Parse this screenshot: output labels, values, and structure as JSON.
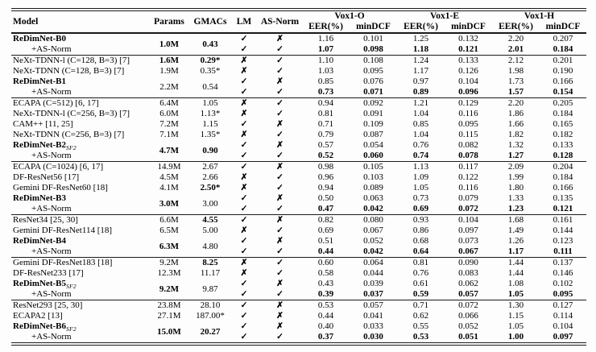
{
  "table": {
    "headers": {
      "model": "Model",
      "params": "Params",
      "gmacs": "GMACs",
      "lm": "LM",
      "asnorm": "AS-Norm",
      "groups": [
        "Vox1-O",
        "Vox1-E",
        "Vox1-H"
      ],
      "sub": {
        "eer": "EER(%)",
        "mindcf": "minDCF"
      }
    },
    "symbols": {
      "check": "✓",
      "cross": "✗"
    },
    "groups": [
      {
        "rows": [
          {
            "model": "ReDimNet-B0",
            "sub": "",
            "bold": true,
            "indent": false,
            "params": {
              "text": "1.0M",
              "bold": true,
              "span": 2
            },
            "gmacs": {
              "text": "0.43",
              "bold": true,
              "span": 2
            },
            "lm": "check",
            "asnorm": "cross",
            "vals": [
              "1.16",
              "0.101",
              "1.25",
              "0.132",
              "2.20",
              "0.207"
            ],
            "vals_bold": false
          },
          {
            "model": "+AS-Norm",
            "sub": "",
            "bold": false,
            "indent": true,
            "params": null,
            "gmacs": null,
            "lm": "check",
            "asnorm": "check",
            "vals": [
              "1.07",
              "0.098",
              "1.18",
              "0.121",
              "2.01",
              "0.184"
            ],
            "vals_bold": true
          }
        ]
      },
      {
        "rows": [
          {
            "model": "NeXt-TDNN-l (C=128, B=3) [7]",
            "sub": "",
            "bold": false,
            "indent": false,
            "params": {
              "text": "1.6M",
              "bold": true,
              "span": 1
            },
            "gmacs": {
              "text": "0.29*",
              "bold": true,
              "span": 1
            },
            "lm": "cross",
            "asnorm": "check",
            "vals": [
              "1.10",
              "0.108",
              "1.24",
              "0.133",
              "2.12",
              "0.201"
            ],
            "vals_bold": false
          },
          {
            "model": "NeXt-TDNN (C=128, B=3) [7]",
            "sub": "",
            "bold": false,
            "indent": false,
            "params": {
              "text": "1.9M",
              "bold": false,
              "span": 1
            },
            "gmacs": {
              "text": "0.35*",
              "bold": false,
              "span": 1
            },
            "lm": "cross",
            "asnorm": "check",
            "vals": [
              "1.03",
              "0.095",
              "1.17",
              "0.126",
              "1.98",
              "0.190"
            ],
            "vals_bold": false
          },
          {
            "model": "ReDimNet-B1",
            "sub": "",
            "bold": true,
            "indent": false,
            "params": {
              "text": "2.2M",
              "bold": false,
              "span": 2
            },
            "gmacs": {
              "text": "0.54",
              "bold": false,
              "span": 2
            },
            "lm": "check",
            "asnorm": "cross",
            "vals": [
              "0.85",
              "0.076",
              "0.97",
              "0.104",
              "1.73",
              "0.166"
            ],
            "vals_bold": false
          },
          {
            "model": "+AS-Norm",
            "sub": "",
            "bold": false,
            "indent": true,
            "params": null,
            "gmacs": null,
            "lm": "check",
            "asnorm": "check",
            "vals": [
              "0.73",
              "0.071",
              "0.89",
              "0.096",
              "1.57",
              "0.154"
            ],
            "vals_bold": true
          }
        ]
      },
      {
        "rows": [
          {
            "model": "ECAPA (C=512) [6, 17]",
            "sub": "",
            "bold": false,
            "indent": false,
            "params": {
              "text": "6.4M",
              "bold": false,
              "span": 1
            },
            "gmacs": {
              "text": "1.05",
              "bold": false,
              "span": 1
            },
            "lm": "cross",
            "asnorm": "check",
            "vals": [
              "0.94",
              "0.092",
              "1.21",
              "0.129",
              "2.20",
              "0.205"
            ],
            "vals_bold": false
          },
          {
            "model": "NeXt-TDNN-l (C=256, B=3) [7]",
            "sub": "",
            "bold": false,
            "indent": false,
            "params": {
              "text": "6.0M",
              "bold": false,
              "span": 1
            },
            "gmacs": {
              "text": "1.13*",
              "bold": false,
              "span": 1
            },
            "lm": "cross",
            "asnorm": "check",
            "vals": [
              "0.81",
              "0.091",
              "1.04",
              "0.116",
              "1.86",
              "0.184"
            ],
            "vals_bold": false
          },
          {
            "model": "CAM++ [11, 25]",
            "sub": "",
            "bold": false,
            "indent": false,
            "params": {
              "text": "7.2M",
              "bold": false,
              "span": 1
            },
            "gmacs": {
              "text": "1.15",
              "bold": false,
              "span": 1
            },
            "lm": "check",
            "asnorm": "cross",
            "vals": [
              "0.71",
              "0.109",
              "0.85",
              "0.095",
              "1.66",
              "0.165"
            ],
            "vals_bold": false
          },
          {
            "model": "NeXt-TDNN (C=256, B=3) [7]",
            "sub": "",
            "bold": false,
            "indent": false,
            "params": {
              "text": "7.1M",
              "bold": false,
              "span": 1
            },
            "gmacs": {
              "text": "1.35*",
              "bold": false,
              "span": 1
            },
            "lm": "cross",
            "asnorm": "check",
            "vals": [
              "0.79",
              "0.087",
              "1.04",
              "0.115",
              "1.82",
              "0.182"
            ],
            "vals_bold": false
          },
          {
            "model": "ReDimNet-B2",
            "sub": "SF2",
            "bold": true,
            "indent": false,
            "params": {
              "text": "4.7M",
              "bold": true,
              "span": 2
            },
            "gmacs": {
              "text": "0.90",
              "bold": true,
              "span": 2
            },
            "lm": "check",
            "asnorm": "cross",
            "vals": [
              "0.57",
              "0.054",
              "0.76",
              "0.082",
              "1.32",
              "0.133"
            ],
            "vals_bold": false
          },
          {
            "model": "+AS-Norm",
            "sub": "",
            "bold": false,
            "indent": true,
            "params": null,
            "gmacs": null,
            "lm": "check",
            "asnorm": "check",
            "vals": [
              "0.52",
              "0.060",
              "0.74",
              "0.078",
              "1.27",
              "0.128"
            ],
            "vals_bold": true
          }
        ]
      },
      {
        "rows": [
          {
            "model": "ECAPA (C=1024) [6, 17]",
            "sub": "",
            "bold": false,
            "indent": false,
            "params": {
              "text": "14.9M",
              "bold": false,
              "span": 1
            },
            "gmacs": {
              "text": "2.67",
              "bold": false,
              "span": 1
            },
            "lm": "check",
            "asnorm": "cross",
            "vals": [
              "0.98",
              "0.105",
              "1.13",
              "0.117",
              "2.09",
              "0.204"
            ],
            "vals_bold": false
          },
          {
            "model": "DF-ResNet56 [17]",
            "sub": "",
            "bold": false,
            "indent": false,
            "params": {
              "text": "4.5M",
              "bold": false,
              "span": 1
            },
            "gmacs": {
              "text": "2.66",
              "bold": false,
              "span": 1
            },
            "lm": "cross",
            "asnorm": "check",
            "vals": [
              "0.96",
              "0.103",
              "1.09",
              "0.122",
              "1.99",
              "0.184"
            ],
            "vals_bold": false
          },
          {
            "model": "Gemini DF-ResNet60 [18]",
            "sub": "",
            "bold": false,
            "indent": false,
            "params": {
              "text": "4.1M",
              "bold": false,
              "span": 1
            },
            "gmacs": {
              "text": "2.50*",
              "bold": true,
              "span": 1
            },
            "lm": "cross",
            "asnorm": "check",
            "vals": [
              "0.94",
              "0.089",
              "1.05",
              "0.116",
              "1.80",
              "0.166"
            ],
            "vals_bold": false
          },
          {
            "model": "ReDimNet-B3",
            "sub": "",
            "bold": true,
            "indent": false,
            "params": {
              "text": "3.0M",
              "bold": true,
              "span": 2
            },
            "gmacs": {
              "text": "3.00",
              "bold": false,
              "span": 2
            },
            "lm": "check",
            "asnorm": "cross",
            "vals": [
              "0.50",
              "0.063",
              "0.73",
              "0.079",
              "1.33",
              "0.135"
            ],
            "vals_bold": false
          },
          {
            "model": "+AS-Norm",
            "sub": "",
            "bold": false,
            "indent": true,
            "params": null,
            "gmacs": null,
            "lm": "check",
            "asnorm": "check",
            "vals": [
              "0.47",
              "0.042",
              "0.69",
              "0.072",
              "1.23",
              "0.121"
            ],
            "vals_bold": true
          }
        ]
      },
      {
        "rows": [
          {
            "model": "ResNet34 [25, 30]",
            "sub": "",
            "bold": false,
            "indent": false,
            "params": {
              "text": "6.6M",
              "bold": false,
              "span": 1
            },
            "gmacs": {
              "text": "4.55",
              "bold": true,
              "span": 1
            },
            "lm": "check",
            "asnorm": "cross",
            "vals": [
              "0.82",
              "0.080",
              "0.93",
              "0.104",
              "1.68",
              "0.161"
            ],
            "vals_bold": false
          },
          {
            "model": "Gemini DF-ResNet114 [18]",
            "sub": "",
            "bold": false,
            "indent": false,
            "params": {
              "text": "6.5M",
              "bold": false,
              "span": 1
            },
            "gmacs": {
              "text": "5.00",
              "bold": false,
              "span": 1
            },
            "lm": "cross",
            "asnorm": "check",
            "vals": [
              "0.69",
              "0.067",
              "0.86",
              "0.097",
              "1.49",
              "0.144"
            ],
            "vals_bold": false
          },
          {
            "model": "ReDimNet-B4",
            "sub": "",
            "bold": true,
            "indent": false,
            "params": {
              "text": "6.3M",
              "bold": true,
              "span": 2
            },
            "gmacs": {
              "text": "4.80",
              "bold": false,
              "span": 2
            },
            "lm": "check",
            "asnorm": "cross",
            "vals": [
              "0.51",
              "0.052",
              "0.68",
              "0.073",
              "1.26",
              "0.123"
            ],
            "vals_bold": false
          },
          {
            "model": "+AS-Norm",
            "sub": "",
            "bold": false,
            "indent": true,
            "params": null,
            "gmacs": null,
            "lm": "check",
            "asnorm": "check",
            "vals": [
              "0.44",
              "0.042",
              "0.64",
              "0.067",
              "1.17",
              "0.111"
            ],
            "vals_bold": true
          }
        ]
      },
      {
        "rows": [
          {
            "model": "Gemini DF-ResNet183 [18]",
            "sub": "",
            "bold": false,
            "indent": false,
            "params": {
              "text": "9.2M",
              "bold": false,
              "span": 1
            },
            "gmacs": {
              "text": "8.25",
              "bold": true,
              "span": 1
            },
            "lm": "cross",
            "asnorm": "check",
            "vals": [
              "0.60",
              "0.064",
              "0.81",
              "0.090",
              "1.44",
              "0.137"
            ],
            "vals_bold": false
          },
          {
            "model": "DF-ResNet233 [17]",
            "sub": "",
            "bold": false,
            "indent": false,
            "params": {
              "text": "12.3M",
              "bold": false,
              "span": 1
            },
            "gmacs": {
              "text": "11.17",
              "bold": false,
              "span": 1
            },
            "lm": "cross",
            "asnorm": "check",
            "vals": [
              "0.58",
              "0.044",
              "0.76",
              "0.083",
              "1.44",
              "0.146"
            ],
            "vals_bold": false
          },
          {
            "model": "ReDimNet-B5",
            "sub": "SF2",
            "bold": true,
            "indent": false,
            "params": {
              "text": "9.2M",
              "bold": true,
              "span": 2
            },
            "gmacs": {
              "text": "9.87",
              "bold": false,
              "span": 2
            },
            "lm": "check",
            "asnorm": "cross",
            "vals": [
              "0.43",
              "0.039",
              "0.61",
              "0.062",
              "1.08",
              "0.102"
            ],
            "vals_bold": false
          },
          {
            "model": "+AS-Norm",
            "sub": "",
            "bold": false,
            "indent": true,
            "params": null,
            "gmacs": null,
            "lm": "check",
            "asnorm": "check",
            "vals": [
              "0.39",
              "0.037",
              "0.59",
              "0.057",
              "1.05",
              "0.095"
            ],
            "vals_bold": true
          }
        ]
      },
      {
        "rows": [
          {
            "model": "ResNet293 [25, 30]",
            "sub": "",
            "bold": false,
            "indent": false,
            "params": {
              "text": "23.8M",
              "bold": false,
              "span": 1
            },
            "gmacs": {
              "text": "28.10",
              "bold": false,
              "span": 1
            },
            "lm": "check",
            "asnorm": "cross",
            "vals": [
              "0.53",
              "0.057",
              "0.71",
              "0.072",
              "1.30",
              "0.127"
            ],
            "vals_bold": false
          },
          {
            "model": "ECAPA2 [13]",
            "sub": "",
            "bold": false,
            "indent": false,
            "params": {
              "text": "27.1M",
              "bold": false,
              "span": 1
            },
            "gmacs": {
              "text": "187.00*",
              "bold": false,
              "span": 1
            },
            "lm": "check",
            "asnorm": "cross",
            "vals": [
              "0.44",
              "0.041",
              "0.62",
              "0.066",
              "1.15",
              "0.114"
            ],
            "vals_bold": false
          },
          {
            "model": "ReDimNet-B6",
            "sub": "SF2",
            "bold": true,
            "indent": false,
            "params": {
              "text": "15.0M",
              "bold": true,
              "span": 2
            },
            "gmacs": {
              "text": "20.27",
              "bold": true,
              "span": 2
            },
            "lm": "check",
            "asnorm": "cross",
            "vals": [
              "0.40",
              "0.033",
              "0.55",
              "0.052",
              "1.05",
              "0.104"
            ],
            "vals_bold": false
          },
          {
            "model": "+AS-Norm",
            "sub": "",
            "bold": false,
            "indent": true,
            "params": null,
            "gmacs": null,
            "lm": "check",
            "asnorm": "check",
            "vals": [
              "0.37",
              "0.030",
              "0.53",
              "0.051",
              "1.00",
              "0.097"
            ],
            "vals_bold": true
          }
        ]
      }
    ]
  }
}
